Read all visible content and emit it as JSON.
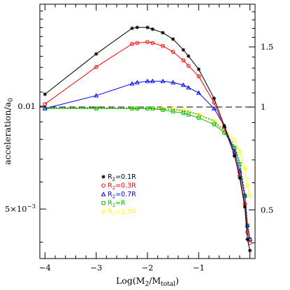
{
  "chart_data": {
    "type": "line",
    "xlabel": "Log(M",
    "xlabel_sub1": "2",
    "xlabel_mid": "/M",
    "xlabel_sub2": "total",
    "xlabel_end": ")",
    "ylabel": "acceleration/a",
    "ylabel_sub": "0",
    "xlim": [
      -4.1,
      0.1
    ],
    "x_ticks": [
      {
        "v": -4,
        "label": "−4"
      },
      {
        "v": -3,
        "label": "−3"
      },
      {
        "v": -2,
        "label": "−2"
      },
      {
        "v": -1,
        "label": "−1"
      }
    ],
    "left_axis": {
      "scale": "log",
      "ylim": [
        0.00358,
        0.0199
      ],
      "tick_labels": [
        {
          "v": 0.01,
          "label": "0.01"
        },
        {
          "v": 0.005,
          "label": "5×10",
          "exp": "−3"
        }
      ]
    },
    "right_axis": {
      "scale": "log",
      "ylim": [
        0.36,
        2.0
      ],
      "tick_labels": [
        {
          "v": 1.5,
          "label": "1.5"
        },
        {
          "v": 1,
          "label": "1"
        },
        {
          "v": 0.5,
          "label": "0.5"
        }
      ]
    },
    "reference_line": {
      "y": 1,
      "style": "dashed"
    },
    "series": [
      {
        "name": "R",
        "sub": "2",
        "rest": "=0.1R",
        "color": "#000000",
        "marker": "star",
        "x": [
          -4,
          -3,
          -2.3,
          -2.2,
          -2,
          -1.9,
          -1.7,
          -1.5,
          -1.3,
          -1.2,
          -1.0,
          -0.7,
          -0.5,
          -0.3,
          -0.2,
          -0.1,
          -0.05,
          0
        ],
        "y": [
          1.09,
          1.43,
          1.7,
          1.71,
          1.71,
          1.69,
          1.65,
          1.58,
          1.47,
          1.41,
          1.29,
          1.06,
          0.88,
          0.72,
          0.62,
          0.51,
          0.41,
          0.38
        ]
      },
      {
        "name": "R",
        "sub": "2",
        "rest": "=0.3R",
        "color": "#ff0000",
        "marker": "circle",
        "x": [
          -4,
          -3,
          -2.3,
          -2.2,
          -2,
          -1.9,
          -1.7,
          -1.5,
          -1.3,
          -1.2,
          -1.0,
          -0.7,
          -0.5,
          -0.3,
          -0.2,
          -0.1,
          -0.05,
          0
        ],
        "y": [
          1.02,
          1.31,
          1.53,
          1.54,
          1.55,
          1.54,
          1.51,
          1.45,
          1.37,
          1.32,
          1.23,
          1.03,
          0.87,
          0.72,
          0.63,
          0.52,
          0.43,
          0.4
        ]
      },
      {
        "name": "R",
        "sub": "2",
        "rest": "=0.7R",
        "color": "#0000ff",
        "marker": "triangle",
        "x": [
          -4,
          -3,
          -2.3,
          -2.2,
          -2,
          -1.9,
          -1.7,
          -1.5,
          -1.3,
          -1.2,
          -1.0,
          -0.7,
          -0.5,
          -0.3,
          -0.2,
          -0.1,
          -0.05,
          0
        ],
        "y": [
          0.99,
          1.08,
          1.17,
          1.18,
          1.19,
          1.19,
          1.19,
          1.18,
          1.16,
          1.14,
          1.1,
          0.99,
          0.88,
          0.74,
          0.65,
          0.55,
          0.45,
          0.41
        ]
      },
      {
        "name": "R",
        "sub": "2",
        "rest": "=R",
        "color": "#00bb00",
        "marker": "square",
        "x": [
          -4,
          -3,
          -2.3,
          -2.2,
          -2,
          -1.9,
          -1.7,
          -1.5,
          -1.3,
          -1.2,
          -1.0,
          -0.7,
          -0.5,
          -0.3,
          -0.2,
          -0.1,
          -0.05,
          0
        ],
        "y": [
          0.99,
          0.99,
          0.99,
          0.99,
          0.99,
          0.99,
          0.98,
          0.97,
          0.96,
          0.95,
          0.93,
          0.89,
          0.84,
          0.76,
          0.68,
          0.55,
          0.45,
          0.41
        ]
      },
      {
        "name": "R",
        "sub": "2",
        "rest": "=1.5R",
        "color": "#ffff00",
        "marker": "pentagon",
        "x": [
          -4,
          -3,
          -2.3,
          -2.2,
          -2,
          -1.9,
          -1.7,
          -1.5,
          -1.3,
          -1.2,
          -1.0,
          -0.7,
          -0.5,
          -0.3,
          -0.2,
          -0.1,
          -0.05,
          0
        ],
        "y": [
          0.99,
          0.99,
          0.99,
          0.99,
          0.99,
          0.99,
          0.99,
          0.99,
          0.98,
          0.97,
          0.95,
          0.91,
          0.86,
          0.8,
          0.74,
          0.66,
          0.59,
          0.55
        ]
      }
    ],
    "dotted_curve": {
      "color": "#006600",
      "x": [
        -4,
        -3,
        -2,
        -1.5,
        -1.2,
        -1.0,
        -0.7,
        -0.5,
        -0.3,
        -0.2,
        -0.1,
        -0.05,
        0
      ],
      "y": [
        0.995,
        0.995,
        0.99,
        0.985,
        0.97,
        0.95,
        0.91,
        0.85,
        0.77,
        0.69,
        0.56,
        0.46,
        0.41
      ]
    },
    "legend_placement": "lower-left",
    "grid": false
  }
}
